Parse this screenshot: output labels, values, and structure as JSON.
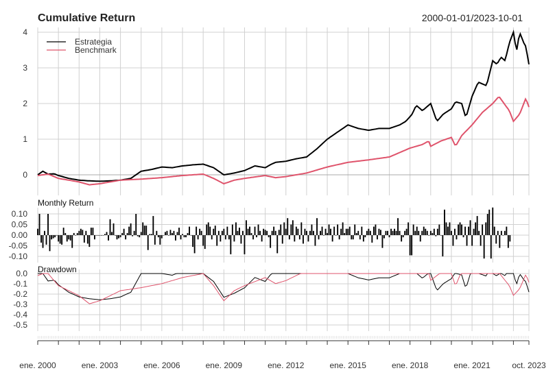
{
  "chart_data": {
    "type": "line",
    "title": "Cumulative Return",
    "date_range": "2000-01-01/2023-10-01",
    "colors": {
      "Estrategia": "#000000",
      "Benchmark": "#DF536B",
      "grid": "#D0D0D0"
    },
    "legend": {
      "placement": "top-left",
      "entries": [
        "Estrategia",
        "Benchmark"
      ]
    },
    "x_range": [
      2000.0,
      2023.75
    ],
    "x_tick_labels": [
      {
        "x": 2000,
        "label": "ene. 2000"
      },
      {
        "x": 2003,
        "label": "ene. 2003"
      },
      {
        "x": 2006,
        "label": "ene. 2006"
      },
      {
        "x": 2009,
        "label": "ene. 2009"
      },
      {
        "x": 2012,
        "label": "ene. 2012"
      },
      {
        "x": 2015,
        "label": "ene. 2015"
      },
      {
        "x": 2018,
        "label": "ene. 2018"
      },
      {
        "x": 2021,
        "label": "ene. 2021"
      },
      {
        "x": 2023.75,
        "label": "oct. 2023"
      }
    ],
    "panels": {
      "cumulative": {
        "title": "Cumulative Return",
        "ylim": [
          -0.35,
          4.0
        ],
        "y_ticks": [
          "0",
          "1",
          "2",
          "3",
          "4"
        ],
        "y_tick_values": [
          0,
          1,
          2,
          3,
          4
        ],
        "series": [
          {
            "name": "Estrategia",
            "x": [
              2000,
              2000.25,
              2000.5,
              2000.8,
              2001,
              2001.5,
              2002,
              2002.5,
              2003,
              2003.5,
              2004,
              2004.5,
              2005,
              2005.5,
              2006,
              2006.5,
              2007,
              2007.5,
              2008,
              2008.5,
              2009,
              2009.5,
              2010,
              2010.5,
              2011,
              2011.3,
              2011.5,
              2012,
              2012.5,
              2013,
              2013.5,
              2014,
              2014.5,
              2015,
              2015.5,
              2016,
              2016.5,
              2017,
              2017.5,
              2017.8,
              2018.1,
              2018.3,
              2018.6,
              2019,
              2019.3,
              2019.6,
              2020,
              2020.2,
              2020.5,
              2020.7,
              2021,
              2021.3,
              2021.7,
              2022,
              2022.2,
              2022.4,
              2022.6,
              2022.8,
              2023,
              2023.15,
              2023.3,
              2023.5,
              2023.6,
              2023.75
            ],
            "y": [
              0,
              0.1,
              0.02,
              0.03,
              -0.02,
              -0.1,
              -0.15,
              -0.17,
              -0.18,
              -0.17,
              -0.15,
              -0.1,
              0.1,
              0.15,
              0.22,
              0.2,
              0.25,
              0.28,
              0.3,
              0.2,
              0.0,
              0.05,
              0.12,
              0.25,
              0.2,
              0.3,
              0.35,
              0.38,
              0.45,
              0.5,
              0.73,
              1.0,
              1.2,
              1.4,
              1.3,
              1.25,
              1.3,
              1.3,
              1.4,
              1.5,
              1.7,
              1.95,
              1.8,
              2.0,
              1.5,
              1.7,
              1.85,
              2.05,
              2.0,
              1.6,
              2.2,
              2.6,
              2.5,
              3.2,
              3.1,
              3.3,
              3.2,
              3.7,
              4.0,
              3.45,
              4.0,
              3.7,
              3.6,
              3.1
            ]
          },
          {
            "name": "Benchmark",
            "x": [
              2000,
              2000.5,
              2001,
              2001.5,
              2002,
              2002.5,
              2003,
              2003.5,
              2004,
              2005,
              2006,
              2007,
              2007.5,
              2008,
              2008.5,
              2009,
              2009.5,
              2010,
              2011,
              2011.5,
              2012,
              2013,
              2014,
              2015,
              2016,
              2017,
              2018,
              2018.6,
              2018.9,
              2019,
              2019.5,
              2020,
              2020.2,
              2020.5,
              2021,
              2021.5,
              2022,
              2022.3,
              2022.8,
              2023,
              2023.3,
              2023.6,
              2023.75
            ],
            "y": [
              -0.02,
              0.02,
              -0.1,
              -0.15,
              -0.2,
              -0.28,
              -0.25,
              -0.2,
              -0.15,
              -0.12,
              -0.08,
              -0.02,
              0.0,
              0.02,
              -0.1,
              -0.25,
              -0.15,
              -0.1,
              -0.02,
              -0.08,
              -0.05,
              0.05,
              0.22,
              0.35,
              0.42,
              0.5,
              0.75,
              0.85,
              0.95,
              0.8,
              0.95,
              1.05,
              0.8,
              1.1,
              1.4,
              1.75,
              2.0,
              2.2,
              1.8,
              1.5,
              1.7,
              2.15,
              1.9
            ]
          }
        ]
      },
      "monthly_return": {
        "title": "Monthly Return",
        "ylim": [
          -0.12,
          0.13
        ],
        "y_ticks": [
          "0.10",
          "0.05",
          "0.00",
          "-0.05",
          "-0.10"
        ],
        "y_tick_values": [
          0.1,
          0.05,
          0.0,
          -0.05,
          -0.1
        ],
        "start": 2000.0,
        "series_name": "Estrategia",
        "values": [
          0.03,
          0.1,
          -0.035,
          -0.06,
          0.02,
          -0.045,
          0.1,
          -0.075,
          -0.02,
          -0.015,
          -0.01,
          0.0,
          -0.03,
          -0.04,
          -0.045,
          0.035,
          0.01,
          -0.03,
          -0.02,
          -0.025,
          -0.06,
          0.01,
          0.0,
          0.01,
          0.02,
          0.03,
          0.025,
          -0.035,
          0.02,
          -0.04,
          -0.055,
          0.035,
          0.035,
          -0.02,
          0.0,
          0.0,
          0.0,
          0.0,
          0.0,
          0.005,
          0.015,
          -0.025,
          0.075,
          0.015,
          0.055,
          0.0,
          -0.02,
          -0.015,
          -0.01,
          0.01,
          0.03,
          -0.02,
          0.01,
          0.04,
          0.055,
          -0.005,
          0.02,
          0.1,
          -0.005,
          -0.01,
          0.015,
          0.06,
          0.045,
          0.045,
          -0.07,
          0.005,
          0.005,
          0.09,
          -0.045,
          0.02,
          -0.01,
          -0.045,
          -0.015,
          0.0,
          0.015,
          0.02,
          0.0,
          0.025,
          0.01,
          0.02,
          -0.025,
          0.015,
          0.035,
          -0.02,
          0.005,
          -0.01,
          -0.01,
          0.01,
          0.04,
          0.0,
          -0.055,
          -0.085,
          0.04,
          -0.02,
          0.03,
          0.02,
          -0.05,
          -0.065,
          0.05,
          0.06,
          0.04,
          -0.02,
          0.03,
          0.045,
          -0.05,
          0.02,
          -0.03,
          0.02,
          0.03,
          -0.02,
          0.04,
          -0.02,
          -0.09,
          0.05,
          -0.03,
          0.06,
          0.02,
          0.035,
          -0.04,
          0.02,
          -0.09,
          0.07,
          0.03,
          0.04,
          0.01,
          -0.02,
          0.04,
          -0.01,
          0.05,
          0.02,
          -0.03,
          0.03,
          0.025,
          0.02,
          -0.01,
          -0.06,
          0.02,
          0.04,
          0.02,
          -0.085,
          0.025,
          0.05,
          -0.04,
          0.06,
          0.03,
          0.08,
          -0.02,
          0.05,
          0.07,
          -0.03,
          0.04,
          0.03,
          -0.02,
          0.06,
          -0.04,
          0.03,
          0.02,
          -0.03,
          0.02,
          0.05,
          0.02,
          -0.05,
          0.08,
          -0.02,
          0.02,
          0.04,
          0.0,
          0.03,
          0.01,
          0.05,
          0.03,
          -0.03,
          0.04,
          0.0,
          0.05,
          -0.02,
          0.03,
          0.06,
          0.01,
          0.03,
          0.03,
          0.04,
          -0.02,
          -0.02,
          0.05,
          0.01,
          0.02,
          -0.02,
          0.04,
          -0.03,
          -0.01,
          0.02,
          0.03,
          0.02,
          -0.035,
          0.04,
          0.05,
          -0.02,
          0.03,
          0.025,
          -0.06,
          -0.015,
          0.02,
          0.02,
          -0.01,
          0.03,
          0.02,
          0.03,
          0.02,
          0.08,
          0.02,
          -0.03,
          -0.01,
          0.02,
          0.03,
          0.06,
          -0.095,
          -0.095,
          0.05,
          0.02,
          0.04,
          0.02,
          -0.03,
          0.02,
          0.04,
          0.03,
          0.02,
          0.0,
          0.02,
          0.01,
          0.03,
          -0.005,
          0.03,
          0.05,
          0.0,
          -0.1,
          0.12,
          0.06,
          0.04,
          0.06,
          0.02,
          -0.05,
          0.03,
          -0.02,
          0.05,
          0.06,
          0.05,
          -0.01,
          0.04,
          -0.05,
          0.04,
          0.07,
          -0.05,
          0.03,
          0.06,
          0.09,
          0.02,
          -0.05,
          0.05,
          -0.11,
          0.06,
          0.1,
          0.12,
          -0.11,
          0.13,
          0.04,
          -0.04,
          0.02,
          -0.06,
          0.02,
          0.0,
          0.02,
          0.04,
          -0.06,
          -0.03
        ]
      },
      "drawdown": {
        "title": "Drawdown",
        "ylim": [
          -0.55,
          0.0
        ],
        "y_ticks": [
          "0.0",
          "-0.1",
          "-0.2",
          "-0.3",
          "-0.4",
          "-0.5"
        ],
        "y_tick_values": [
          0.0,
          -0.1,
          -0.2,
          -0.3,
          -0.4,
          -0.5
        ],
        "derived_from": "cumulative"
      }
    }
  }
}
